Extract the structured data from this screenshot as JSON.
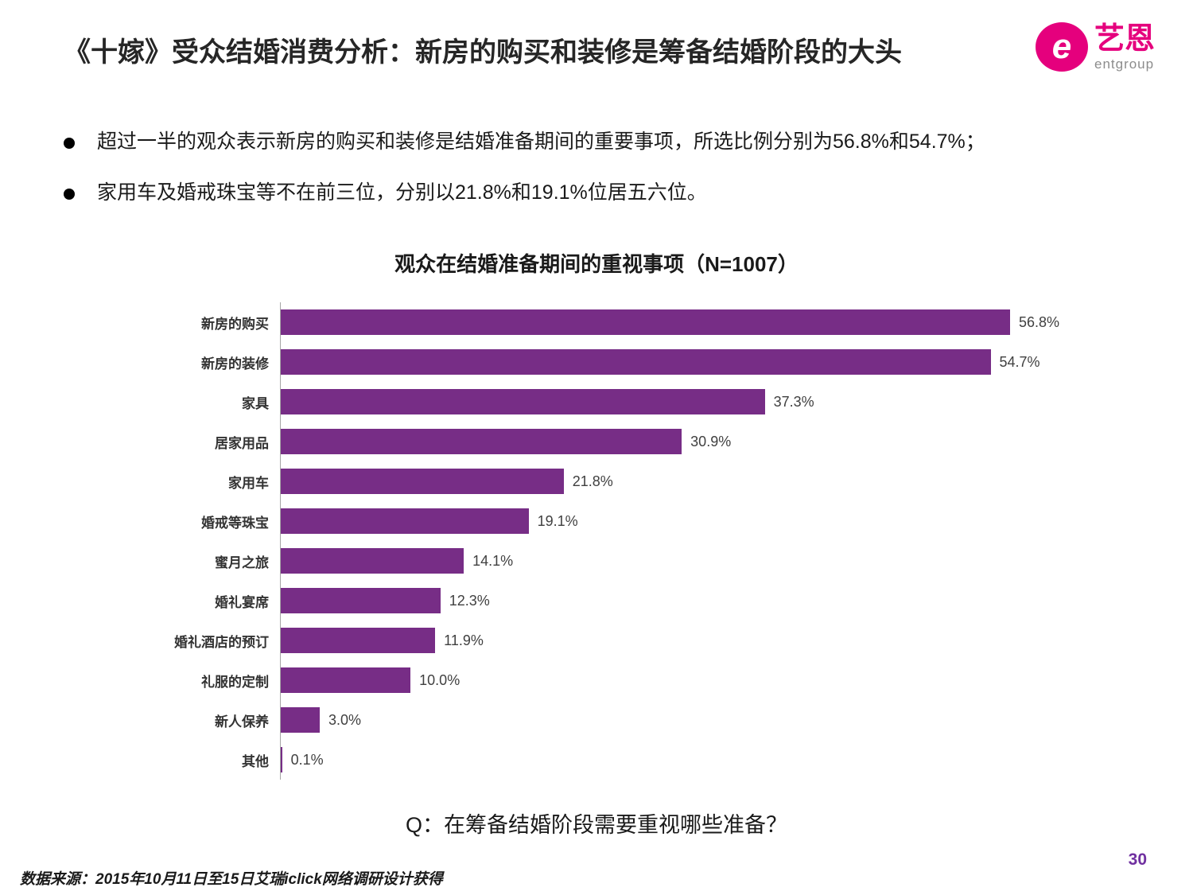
{
  "slide": {
    "title": "《十嫁》受众结婚消费分析：新房的购买和装修是筹备结婚阶段的大头",
    "bullets": [
      "超过一半的观众表示新房的购买和装修是结婚准备期间的重要事项，所选比例分别为56.8%和54.7%；",
      "家用车及婚戒珠宝等不在前三位，分别以21.8%和19.1%位居五六位。"
    ],
    "question": "Q：在筹备结婚阶段需要重视哪些准备？",
    "source": "数据来源：2015年10月11日至15日艾瑞iclick网络调研设计获得",
    "page_number": "30"
  },
  "logo": {
    "mark": "e",
    "brand": "艺恩",
    "sub_brand": "entgroup"
  },
  "colors": {
    "bar": "#772D86",
    "logo_magenta": "#E5007D",
    "page_number": "#7030A0",
    "axis_line": "#a6a6a6"
  },
  "chart_data": {
    "type": "bar",
    "orientation": "horizontal",
    "title": "观众在结婚准备期间的重视事项（N=1007）",
    "categories": [
      "新房的购买",
      "新房的装修",
      "家具",
      "居家用品",
      "家用车",
      "婚戒等珠宝",
      "蜜月之旅",
      "婚礼宴席",
      "婚礼酒店的预订",
      "礼服的定制",
      "新人保养",
      "其他"
    ],
    "values": [
      56.8,
      54.7,
      37.3,
      30.9,
      21.8,
      19.1,
      14.1,
      12.3,
      11.9,
      10.0,
      3.0,
      0.1
    ],
    "labels": [
      "56.8%",
      "54.7%",
      "37.3%",
      "30.9%",
      "21.8%",
      "19.1%",
      "14.1%",
      "12.3%",
      "11.9%",
      "10.0%",
      "3.0%",
      "0.1%"
    ],
    "xlim": [
      0,
      60
    ],
    "grid": false,
    "legend": false,
    "bar_color": "#772D86"
  }
}
